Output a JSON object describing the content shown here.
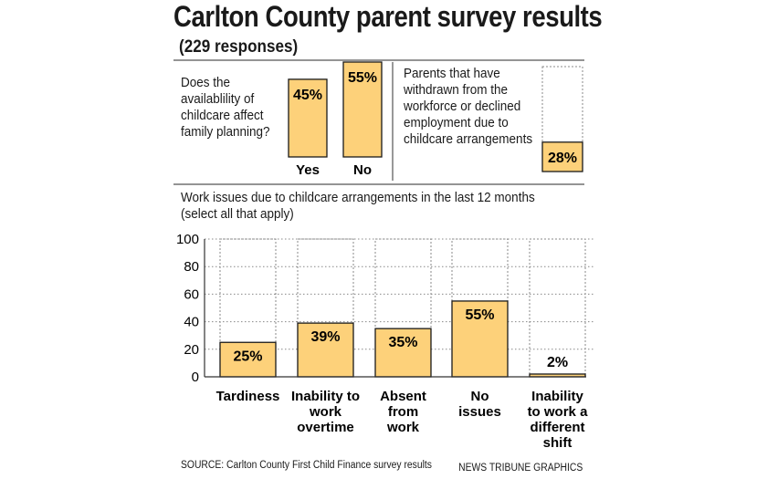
{
  "title": "Carlton County parent survey results",
  "subtitle": "(229 responses)",
  "colors": {
    "bar_fill": "#fdd17a",
    "bar_stroke": "#1a1a1a",
    "grid": "#888888"
  },
  "chart_data": [
    {
      "type": "bar",
      "title": "Does the availablility of childcare affect family planning?",
      "title_lines": [
        "Does the",
        "availablility of",
        "childcare affect",
        "family planning?"
      ],
      "categories": [
        "Yes",
        "No"
      ],
      "values": [
        45,
        55
      ],
      "value_labels": [
        "45%",
        "55%"
      ],
      "ylim": [
        0,
        55
      ]
    },
    {
      "type": "bar",
      "title": "Parents that have withdrawn from the workforce or declined employment due to childcare arrangements",
      "title_lines": [
        "Parents that have",
        "withdrawn from the",
        "workforce or declined",
        "employment due to",
        "childcare arrangements"
      ],
      "categories": [
        ""
      ],
      "values": [
        28
      ],
      "value_labels": [
        "28%"
      ],
      "ylim": [
        0,
        100
      ]
    },
    {
      "type": "bar",
      "title": "Work issues due to childcare arrangements in the last 12 months (select all that apply)",
      "title_lines": [
        "Work issues due to childcare arrangements in the last 12 months",
        "(select all that apply)"
      ],
      "categories": [
        "Tardiness",
        "Inability to work overtime",
        "Absent from work",
        "No issues",
        "Inability to work a different shift"
      ],
      "category_lines": [
        [
          "Tardiness"
        ],
        [
          "Inability to",
          "work",
          "overtime"
        ],
        [
          "Absent",
          "from",
          "work"
        ],
        [
          "No",
          "issues"
        ],
        [
          "Inability",
          "to work a",
          "different",
          "shift"
        ]
      ],
      "values": [
        25,
        39,
        35,
        55,
        2
      ],
      "value_labels": [
        "25%",
        "39%",
        "35%",
        "55%",
        "2%"
      ],
      "yticks": [
        "0",
        "20",
        "40",
        "60",
        "80",
        "100"
      ],
      "ylim": [
        0,
        100
      ]
    }
  ],
  "source": "SOURCE: Carlton County First Child Finance survey results",
  "credit": "NEWS TRIBUNE GRAPHICS"
}
